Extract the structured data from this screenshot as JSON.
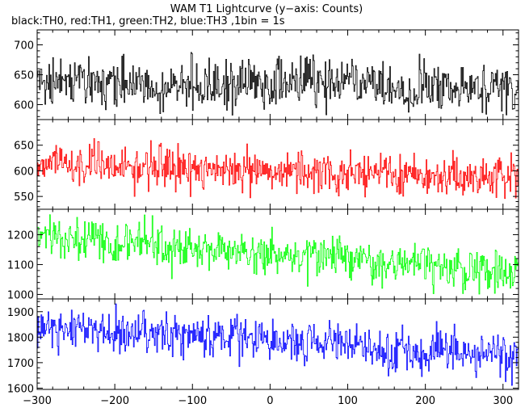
{
  "chart_data": {
    "type": "line",
    "title": "WAM T1 Lightcurve (y−axis: Counts)",
    "subtitle": "black:TH0, red:TH1, green:TH2, blue:TH3 ,1bin = 1s",
    "xlim": [
      -300,
      320
    ],
    "x_ticks": [
      -300,
      -200,
      -100,
      0,
      100,
      200,
      300
    ],
    "x_tick_labels": [
      "−300",
      "−200",
      "−100",
      "0",
      "100",
      "200",
      "300"
    ],
    "panels": [
      {
        "name": "TH0",
        "color": "#000000",
        "ylim": [
          575,
          725
        ],
        "y_ticks": [
          600,
          650,
          700
        ],
        "y_tick_labels": [
          "600",
          "650",
          "700"
        ],
        "trend_x": [
          -300,
          -200,
          -100,
          0,
          100,
          200,
          320
        ],
        "trend_y": [
          635,
          636,
          632,
          638,
          634,
          628,
          625
        ],
        "noise": 20
      },
      {
        "name": "TH1",
        "color": "#ff0000",
        "ylim": [
          525,
          700
        ],
        "y_ticks": [
          550,
          600,
          650
        ],
        "y_tick_labels": [
          "550",
          "600",
          "650"
        ],
        "trend_x": [
          -300,
          -200,
          -100,
          0,
          100,
          200,
          320
        ],
        "trend_y": [
          615,
          612,
          605,
          600,
          595,
          590,
          583
        ],
        "noise": 20
      },
      {
        "name": "TH2",
        "color": "#00ff00",
        "ylim": [
          985,
          1285
        ],
        "y_ticks": [
          1000,
          1100,
          1200
        ],
        "y_tick_labels": [
          "1000",
          "1100",
          "1200"
        ],
        "trend_x": [
          -300,
          -200,
          -100,
          0,
          100,
          200,
          320
        ],
        "trend_y": [
          1200,
          1175,
          1150,
          1135,
          1115,
          1095,
          1070
        ],
        "noise": 35
      },
      {
        "name": "TH3",
        "color": "#0000ff",
        "ylim": [
          1595,
          1950
        ],
        "y_ticks": [
          1600,
          1700,
          1800,
          1900
        ],
        "y_tick_labels": [
          "1600",
          "1700",
          "1800",
          "1900"
        ],
        "trend_x": [
          -300,
          -200,
          -100,
          0,
          100,
          200,
          320
        ],
        "trend_y": [
          1840,
          1820,
          1805,
          1790,
          1770,
          1745,
          1720
        ],
        "noise": 40
      }
    ]
  }
}
